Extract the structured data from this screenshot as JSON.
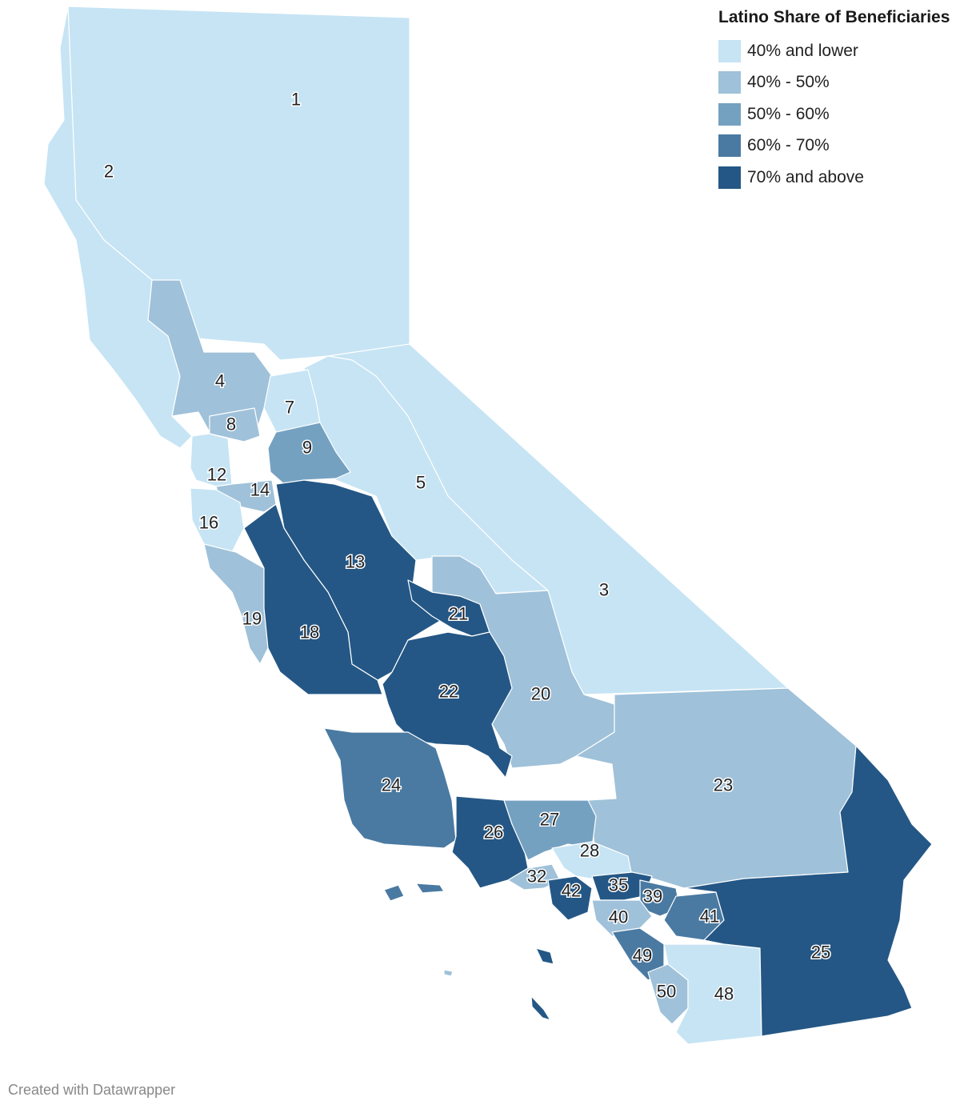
{
  "legend": {
    "title": "Latino Share of Beneficiaries",
    "items": [
      {
        "label": "40% and lower",
        "color": "#c6e4f4"
      },
      {
        "label": "40% - 50%",
        "color": "#9fc1d9"
      },
      {
        "label": "50% - 60%",
        "color": "#75a1c1"
      },
      {
        "label": "60% - 70%",
        "color": "#4a7aa2"
      },
      {
        "label": "70% and above",
        "color": "#245785"
      }
    ]
  },
  "districts": [
    {
      "id": "1",
      "bin": 0
    },
    {
      "id": "2",
      "bin": 0
    },
    {
      "id": "3",
      "bin": 0
    },
    {
      "id": "4",
      "bin": 1
    },
    {
      "id": "5",
      "bin": 0
    },
    {
      "id": "7",
      "bin": 0
    },
    {
      "id": "8",
      "bin": 1
    },
    {
      "id": "9",
      "bin": 2
    },
    {
      "id": "12",
      "bin": 0
    },
    {
      "id": "13",
      "bin": 4
    },
    {
      "id": "14",
      "bin": 1
    },
    {
      "id": "16",
      "bin": 0
    },
    {
      "id": "18",
      "bin": 4
    },
    {
      "id": "19",
      "bin": 1
    },
    {
      "id": "20",
      "bin": 1
    },
    {
      "id": "21",
      "bin": 4
    },
    {
      "id": "22",
      "bin": 4
    },
    {
      "id": "23",
      "bin": 1
    },
    {
      "id": "24",
      "bin": 3
    },
    {
      "id": "25",
      "bin": 4
    },
    {
      "id": "26",
      "bin": 4
    },
    {
      "id": "27",
      "bin": 2
    },
    {
      "id": "28",
      "bin": 0
    },
    {
      "id": "32",
      "bin": 1
    },
    {
      "id": "35",
      "bin": 4
    },
    {
      "id": "39",
      "bin": 3
    },
    {
      "id": "40",
      "bin": 1
    },
    {
      "id": "41",
      "bin": 3
    },
    {
      "id": "42",
      "bin": 4
    },
    {
      "id": "48",
      "bin": 0
    },
    {
      "id": "49",
      "bin": 3
    },
    {
      "id": "50",
      "bin": 1
    }
  ],
  "credit": "Created with Datawrapper"
}
